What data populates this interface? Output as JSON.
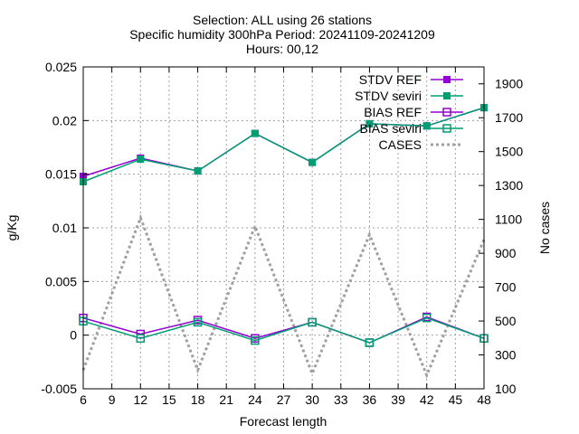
{
  "chart_data": {
    "type": "line",
    "title_lines": [
      "Selection: ALL using    26 stations",
      "Specific humidity 300hPa   Period: 20241109-20241209",
      "Hours: 00,12"
    ],
    "xlabel": "Forecast length",
    "ylabel": "g/Kg",
    "y2label": "No cases",
    "xlim": [
      6,
      48
    ],
    "ylim": [
      -0.005,
      0.025
    ],
    "y2lim": [
      100,
      2000
    ],
    "x_ticks": [
      6,
      9,
      12,
      15,
      18,
      21,
      24,
      27,
      30,
      33,
      36,
      39,
      42,
      45,
      48
    ],
    "y_ticks": [
      -0.005,
      0,
      0.005,
      0.01,
      0.015,
      0.02,
      0.025
    ],
    "y_tick_labels": [
      "-0.005",
      "0",
      "0.005",
      "0.01",
      "0.015",
      "0.02",
      "0.025"
    ],
    "y2_ticks": [
      100,
      300,
      500,
      700,
      900,
      1100,
      1300,
      1500,
      1700,
      1900
    ],
    "y2_tick_labels": [
      "100",
      "300",
      "500",
      "700",
      "900",
      "1100",
      "1300",
      "1500",
      "1700",
      "1900"
    ],
    "grid": true,
    "legend_position": "top-right",
    "x": [
      6,
      12,
      18,
      24,
      30,
      36,
      42,
      48
    ],
    "series": [
      {
        "name": "STDV REF",
        "axis": "y",
        "color": "#9400d3",
        "marker": "square-filled",
        "values": [
          0.0148,
          0.0165,
          0.0153,
          0.0188,
          0.0161,
          0.0197,
          0.0195,
          0.0212
        ]
      },
      {
        "name": "STDV seviri",
        "axis": "y",
        "color": "#009e73",
        "marker": "square-filled",
        "values": [
          0.0143,
          0.0164,
          0.0153,
          0.0188,
          0.0161,
          0.0197,
          0.0195,
          0.0212
        ]
      },
      {
        "name": "BIAS REF",
        "axis": "y",
        "color": "#9400d3",
        "marker": "square-open",
        "values": [
          0.0016,
          0.0001,
          0.0014,
          -0.0003,
          0.0012,
          -0.0007,
          0.0017,
          -0.0003
        ]
      },
      {
        "name": "BIAS seviri",
        "axis": "y",
        "color": "#009e73",
        "marker": "square-open",
        "values": [
          0.0013,
          -0.0003,
          0.0012,
          -0.0005,
          0.0012,
          -0.0007,
          0.0016,
          -0.0003
        ]
      },
      {
        "name": "CASES",
        "axis": "y2",
        "color": "#a0a0a0",
        "style": "dotted",
        "values": [
          210,
          1110,
          210,
          1060,
          190,
          1010,
          180,
          980
        ]
      }
    ]
  }
}
